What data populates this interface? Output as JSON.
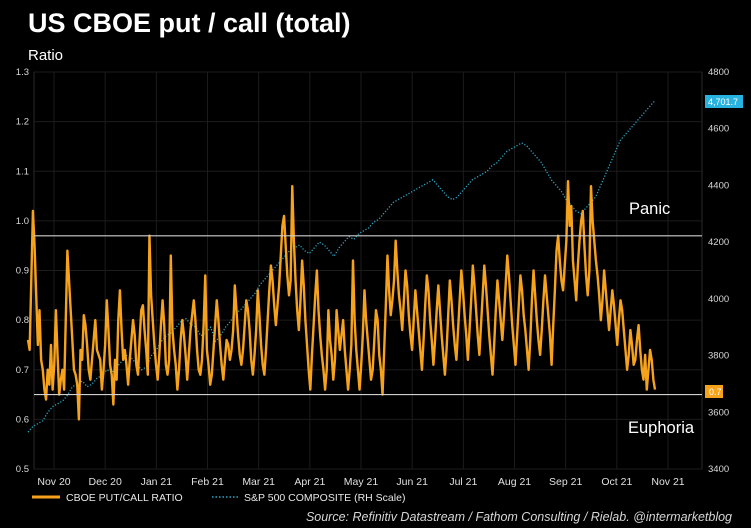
{
  "chart_data": {
    "type": "line",
    "title": "US CBOE put / call (total)",
    "ylabel": "Ratio",
    "xlabel": "",
    "ylim": [
      0.5,
      1.3
    ],
    "y2lim": [
      3400,
      4800
    ],
    "yticks": [
      "0.5",
      "0.6",
      "0.7",
      "0.8",
      "0.9",
      "1.0",
      "1.1",
      "1.2",
      "1.3"
    ],
    "y2ticks": [
      "3400",
      "3600",
      "3800",
      "4000",
      "4200",
      "4400",
      "4600",
      "4800"
    ],
    "x_tick_labels": [
      "Nov 20",
      "Dec 20",
      "Jan 21",
      "Feb 21",
      "Mar 21",
      "Apr 21",
      "May 21",
      "Jun 21",
      "Jul 21",
      "Aug 21",
      "Sep 21",
      "Oct 21",
      "Nov 21"
    ],
    "grid": true,
    "legend_position": "bottom-left",
    "reference_lines": [
      {
        "value": 0.97,
        "label": "Panic"
      },
      {
        "value": 0.65,
        "label": "Euphoria"
      }
    ],
    "series": [
      {
        "name": "CBOE PUT/CALL RATIO",
        "axis": "left",
        "style": "solid",
        "color": "#f7a21b",
        "last_value_label": "0.7",
        "values": [
          0.76,
          0.74,
          0.88,
          1.02,
          0.95,
          0.85,
          0.75,
          0.82,
          0.72,
          0.7,
          0.66,
          0.64,
          0.7,
          0.67,
          0.75,
          0.66,
          0.71,
          0.82,
          0.73,
          0.65,
          0.68,
          0.7,
          0.66,
          0.8,
          0.94,
          0.88,
          0.82,
          0.76,
          0.7,
          0.69,
          0.67,
          0.6,
          0.74,
          0.72,
          0.81,
          0.79,
          0.75,
          0.7,
          0.68,
          0.72,
          0.76,
          0.8,
          0.74,
          0.73,
          0.72,
          0.66,
          0.7,
          0.75,
          0.84,
          0.78,
          0.71,
          0.69,
          0.63,
          0.72,
          0.68,
          0.8,
          0.86,
          0.78,
          0.72,
          0.74,
          0.71,
          0.67,
          0.72,
          0.76,
          0.8,
          0.77,
          0.71,
          0.69,
          0.76,
          0.82,
          0.83,
          0.78,
          0.74,
          0.69,
          0.97,
          0.85,
          0.8,
          0.75,
          0.71,
          0.68,
          0.73,
          0.79,
          0.84,
          0.79,
          0.71,
          0.69,
          0.72,
          0.93,
          0.78,
          0.74,
          0.71,
          0.66,
          0.7,
          0.76,
          0.8,
          0.77,
          0.73,
          0.68,
          0.73,
          0.78,
          0.81,
          0.84,
          0.8,
          0.74,
          0.7,
          0.69,
          0.72,
          0.79,
          0.89,
          0.74,
          0.71,
          0.67,
          0.69,
          0.74,
          0.79,
          0.84,
          0.8,
          0.75,
          0.71,
          0.68,
          0.72,
          0.76,
          0.75,
          0.72,
          0.74,
          0.78,
          0.87,
          0.82,
          0.77,
          0.73,
          0.71,
          0.74,
          0.79,
          0.84,
          0.82,
          0.78,
          0.72,
          0.69,
          0.73,
          0.78,
          0.86,
          0.81,
          0.75,
          0.71,
          0.69,
          0.74,
          0.8,
          0.86,
          0.91,
          0.88,
          0.83,
          0.79,
          0.83,
          0.87,
          0.93,
          0.99,
          1.01,
          0.95,
          0.89,
          0.85,
          0.88,
          1.07,
          0.96,
          0.88,
          0.82,
          0.78,
          0.84,
          0.92,
          0.87,
          0.8,
          0.75,
          0.7,
          0.66,
          0.73,
          0.79,
          0.85,
          0.9,
          0.82,
          0.77,
          0.73,
          0.7,
          0.66,
          0.7,
          0.82,
          0.76,
          0.73,
          0.68,
          0.72,
          0.82,
          0.78,
          0.74,
          0.77,
          0.8,
          0.74,
          0.7,
          0.66,
          0.7,
          0.75,
          0.92,
          0.8,
          0.74,
          0.7,
          0.66,
          0.71,
          0.77,
          0.86,
          0.8,
          0.76,
          0.72,
          0.68,
          0.7,
          0.76,
          0.82,
          0.8,
          0.73,
          0.7,
          0.65,
          0.74,
          0.83,
          0.93,
          0.86,
          0.81,
          0.84,
          0.88,
          0.96,
          0.9,
          0.85,
          0.82,
          0.78,
          0.84,
          0.9,
          0.87,
          0.81,
          0.77,
          0.74,
          0.8,
          0.86,
          0.82,
          0.78,
          0.74,
          0.7,
          0.76,
          0.83,
          0.89,
          0.86,
          0.8,
          0.76,
          0.71,
          0.76,
          0.82,
          0.87,
          0.82,
          0.77,
          0.73,
          0.69,
          0.74,
          0.81,
          0.88,
          0.84,
          0.79,
          0.75,
          0.72,
          0.78,
          0.84,
          0.9,
          0.86,
          0.81,
          0.77,
          0.72,
          0.78,
          0.84,
          0.91,
          0.87,
          0.82,
          0.77,
          0.73,
          0.79,
          0.85,
          0.91,
          0.87,
          0.82,
          0.77,
          0.73,
          0.69,
          0.75,
          0.82,
          0.88,
          0.84,
          0.8,
          0.76,
          0.81,
          0.87,
          0.93,
          0.89,
          0.84,
          0.79,
          0.75,
          0.71,
          0.77,
          0.83,
          0.89,
          0.86,
          0.81,
          0.78,
          0.74,
          0.7,
          0.76,
          0.84,
          0.9,
          0.85,
          0.8,
          0.76,
          0.73,
          0.78,
          0.84,
          0.89,
          0.85,
          0.81,
          0.77,
          0.71,
          0.79,
          0.86,
          0.94,
          0.97,
          0.92,
          0.88,
          0.86,
          0.91,
          0.96,
          1.08,
          0.99,
          1.03,
          0.92,
          0.88,
          0.84,
          0.91,
          0.96,
          1.0,
          1.02,
          0.95,
          0.89,
          0.85,
          0.9,
          1.07,
          1.0,
          0.96,
          0.92,
          0.89,
          0.85,
          0.8,
          0.84,
          0.9,
          0.86,
          0.82,
          0.78,
          0.82,
          0.86,
          0.83,
          0.79,
          0.75,
          0.8,
          0.84,
          0.82,
          0.78,
          0.74,
          0.7,
          0.73,
          0.78,
          0.75,
          0.71,
          0.72,
          0.76,
          0.79,
          0.74,
          0.7,
          0.68,
          0.73,
          0.66,
          0.7,
          0.74,
          0.72,
          0.68,
          0.66
        ],
        "x_range": [
          "2020-10-20",
          "2021-11-02"
        ]
      },
      {
        "name": "S&P 500 COMPOSITE (RH Scale)",
        "axis": "right",
        "style": "dotted",
        "color": "#2ea8c9",
        "last_value_label": "4,701.7",
        "values": [
          3530,
          3550,
          3560,
          3570,
          3600,
          3620,
          3630,
          3640,
          3660,
          3690,
          3700,
          3710,
          3690,
          3700,
          3720,
          3730,
          3750,
          3740,
          3760,
          3780,
          3800,
          3790,
          3770,
          3750,
          3760,
          3800,
          3820,
          3850,
          3870,
          3880,
          3900,
          3920,
          3930,
          3910,
          3900,
          3870,
          3880,
          3900,
          3850,
          3870,
          3900,
          3920,
          3950,
          3960,
          3980,
          4000,
          4020,
          4050,
          4070,
          4090,
          4110,
          4130,
          4150,
          4170,
          4180,
          4190,
          4170,
          4160,
          4180,
          4200,
          4190,
          4170,
          4150,
          4180,
          4200,
          4220,
          4210,
          4230,
          4240,
          4250,
          4270,
          4280,
          4300,
          4320,
          4340,
          4350,
          4360,
          4370,
          4380,
          4390,
          4400,
          4410,
          4420,
          4400,
          4380,
          4360,
          4350,
          4360,
          4380,
          4400,
          4420,
          4430,
          4440,
          4450,
          4470,
          4480,
          4500,
          4520,
          4530,
          4540,
          4550,
          4540,
          4520,
          4500,
          4480,
          4450,
          4420,
          4400,
          4380,
          4350,
          4330,
          4310,
          4300,
          4320,
          4340,
          4360,
          4400,
          4440,
          4480,
          4520,
          4560,
          4580,
          4600,
          4620,
          4640,
          4660,
          4680,
          4700
        ],
        "x_range": [
          "2020-10-20",
          "2021-11-02"
        ]
      }
    ]
  },
  "legend": {
    "items": [
      {
        "label": "CBOE PUT/CALL RATIO",
        "color": "#f7a21b"
      },
      {
        "label": "S&P 500 COMPOSITE (RH Scale)",
        "color": "#2ea8c9"
      }
    ]
  },
  "source": "Source: Refinitiv Datastream / Fathom Consulting / Rielab. @intermarketblog",
  "colors": {
    "background": "#000000",
    "ratio_line": "#f7a21b",
    "spx_line": "#2ea8c9",
    "reference_line": "#cfcfcf",
    "grid": "#1c1c1c",
    "spx_badge": "#27b2e0",
    "ratio_badge": "#f7a21b"
  }
}
